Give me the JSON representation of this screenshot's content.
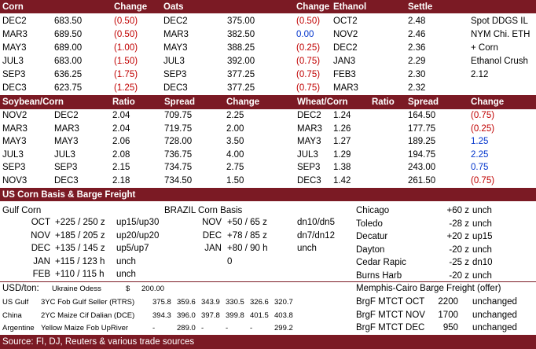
{
  "s1": {
    "headers": [
      "Corn",
      "Change",
      "Oats",
      "Change",
      "Ethanol",
      "Settle"
    ],
    "rows": [
      [
        "DEC2",
        "683.50",
        "(0.50)",
        "DEC2",
        "375.00",
        "(0.50)",
        "OCT2",
        "2.48",
        "Spot DDGS IL"
      ],
      [
        "MAR3",
        "689.50",
        "(0.50)",
        "MAR3",
        "382.50",
        "0.00",
        "NOV2",
        "2.46",
        "NYM Chi. ETH"
      ],
      [
        "MAY3",
        "689.00",
        "(1.00)",
        "MAY3",
        "388.25",
        "(0.25)",
        "DEC2",
        "2.36",
        "+ Corn"
      ],
      [
        "JUL3",
        "683.00",
        "(1.50)",
        "JUL3",
        "392.00",
        "(0.75)",
        "JAN3",
        "2.29",
        "Ethanol Crush"
      ],
      [
        "SEP3",
        "636.25",
        "(1.75)",
        "SEP3",
        "377.25",
        "(0.75)",
        "FEB3",
        "2.30",
        "2.12"
      ],
      [
        "DEC3",
        "623.75",
        "(1.25)",
        "DEC3",
        "377.25",
        "(0.75)",
        "MAR3",
        "2.32",
        ""
      ]
    ]
  },
  "s2": {
    "headers": [
      "Soybean/Corn",
      "Ratio",
      "Spread",
      "Change",
      "Wheat/Corn",
      "Ratio",
      "Spread",
      "Change"
    ],
    "rows": [
      [
        "NOV2",
        "DEC2",
        "2.04",
        "709.75",
        "2.25",
        "DEC2",
        "1.24",
        "164.50",
        "(0.75)"
      ],
      [
        "MAR3",
        "MAR3",
        "2.04",
        "719.75",
        "2.00",
        "MAR3",
        "1.26",
        "177.75",
        "(0.25)"
      ],
      [
        "MAY3",
        "MAY3",
        "2.06",
        "728.00",
        "3.50",
        "MAY3",
        "1.27",
        "189.25",
        "1.25"
      ],
      [
        "JUL3",
        "JUL3",
        "2.08",
        "736.75",
        "4.00",
        "JUL3",
        "1.29",
        "194.75",
        "2.25"
      ],
      [
        "SEP3",
        "SEP3",
        "2.15",
        "734.75",
        "2.75",
        "SEP3",
        "1.38",
        "243.00",
        "0.75"
      ],
      [
        "NOV3",
        "DEC3",
        "2.18",
        "734.50",
        "1.50",
        "DEC3",
        "1.42",
        "261.50",
        "(0.75)"
      ]
    ]
  },
  "s3": {
    "title": "US Corn Basis & Barge Freight",
    "gulf_title": "Gulf Corn",
    "gulf": [
      [
        "OCT",
        "+225 / 250 z",
        "up15/up30"
      ],
      [
        "NOV",
        "+185 / 205 z",
        "up20/up20"
      ],
      [
        "DEC",
        "+135 / 145 z",
        "up5/up7"
      ],
      [
        "JAN",
        "+115  / 123 h",
        "unch"
      ],
      [
        "FEB",
        "+110  / 115 h",
        "unch"
      ]
    ],
    "brazil_title": "BRAZIL Corn Basis",
    "brazil": [
      [
        "NOV",
        "+50 / 65 z",
        "dn10/dn5"
      ],
      [
        "DEC",
        "+78 / 85 z",
        "dn7/dn12"
      ],
      [
        "JAN",
        "+80 / 90 h",
        "unch"
      ],
      [
        "",
        "0",
        ""
      ]
    ],
    "interior": [
      [
        "Chicago",
        "+60 z",
        "unch"
      ],
      [
        "Toledo",
        "-28 z",
        "unch"
      ],
      [
        "Decatur",
        "+20 z",
        "up15"
      ],
      [
        "Dayton",
        "-20 z",
        "unch"
      ],
      [
        "Cedar Rapic",
        "-25 z",
        "dn10"
      ],
      [
        "Burns Harb",
        "-20 z",
        "unch"
      ]
    ],
    "usd_ton": "USD/ton:",
    "ukraine_label": "Ukraine Odess",
    "ukraine_currency": "$",
    "ukraine_value": "200.00",
    "barge_title": "Memphis-Cairo Barge Freight (offer)",
    "fob": [
      [
        "US Gulf",
        "3YC Fob Gulf Seller (RTRS)",
        "375.8",
        "359.6",
        "343.9",
        "330.5",
        "326.6",
        "320.7"
      ],
      [
        "China",
        "2YC Maize Cif Dalian (DCE)",
        "394.3",
        "396.0",
        "397.8",
        "399.8",
        "401.5",
        "403.8"
      ],
      [
        "Argentine",
        "Yellow Maize Fob UpRiver",
        "-",
        "289.0",
        "-",
        "-",
        "-",
        "299.2"
      ]
    ],
    "barge": [
      [
        "BrgF MTCT OCT",
        "2200",
        "unchanged"
      ],
      [
        "BrgF MTCT NOV",
        "1700",
        "unchanged"
      ],
      [
        "BrgF MTCT DEC",
        "950",
        "unchanged"
      ]
    ]
  },
  "source": "Source: FI, DJ, Reuters & various trade sources",
  "colors": {
    "band": "#7b1a24",
    "negative": "#c00000",
    "positive": "#0033cc"
  }
}
